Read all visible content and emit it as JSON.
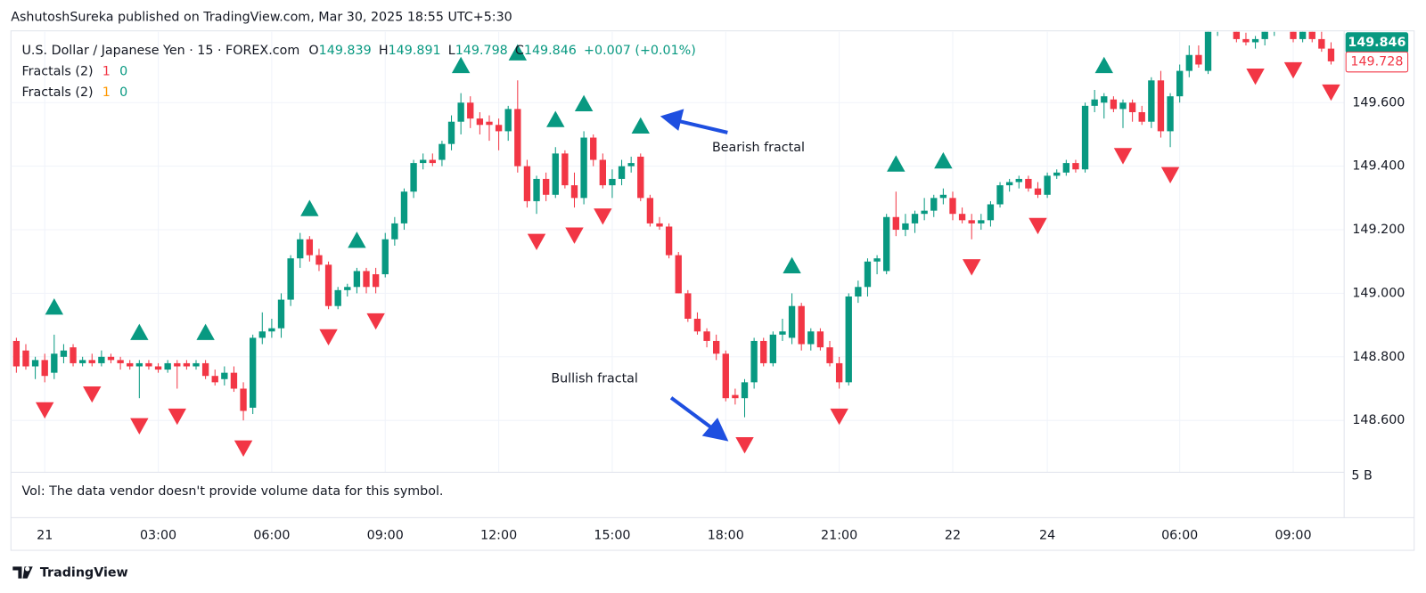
{
  "header": {
    "publisher": "AshutoshSureka published on TradingView.com, Mar 30, 2025 18:55 UTC+5:30",
    "symbol": "U.S. Dollar / Japanese Yen · 15 · FOREX.com",
    "ohlc": [
      {
        "label": "O",
        "value": 149.839
      },
      {
        "label": "H",
        "value": 149.891
      },
      {
        "label": "L",
        "value": 149.798
      },
      {
        "label": "C",
        "value": 149.846
      }
    ],
    "change": "+0.007 (+0.01%)",
    "indicators": [
      {
        "name": "Fractals (2)",
        "values": [
          1,
          0
        ],
        "colors": [
          "#f23645",
          "#089981"
        ]
      },
      {
        "name": "Fractals (2)",
        "values": [
          1,
          0
        ],
        "colors": [
          "#ff9800",
          "#089981"
        ]
      }
    ],
    "volume_note": "Vol: The data vendor doesn't provide volume data for this symbol.",
    "volume_axis_label": "5 B"
  },
  "footer": {
    "brand": "TradingView"
  },
  "chart_data": {
    "type": "candlestick",
    "categories": [
      null,
      null,
      null,
      "21",
      null,
      null,
      null,
      null,
      null,
      null,
      null,
      null,
      null,
      null,
      null,
      "03:00",
      null,
      null,
      null,
      null,
      null,
      null,
      null,
      null,
      null,
      null,
      null,
      "06:00",
      null,
      null,
      null,
      null,
      null,
      null,
      null,
      null,
      null,
      null,
      null,
      "09:00",
      null,
      null,
      null,
      null,
      null,
      null,
      null,
      null,
      null,
      null,
      null,
      "12:00",
      null,
      null,
      null,
      null,
      null,
      null,
      null,
      null,
      null,
      null,
      null,
      "15:00",
      null,
      null,
      null,
      null,
      null,
      null,
      null,
      null,
      null,
      null,
      null,
      "18:00",
      null,
      null,
      null,
      null,
      null,
      null,
      null,
      null,
      null,
      null,
      null,
      "21:00",
      null,
      null,
      null,
      null,
      null,
      null,
      null,
      null,
      null,
      null,
      null,
      "22",
      null,
      null,
      null,
      null,
      null,
      null,
      null,
      null,
      null,
      "24",
      null,
      null,
      null,
      null,
      null,
      null,
      null,
      null,
      null,
      null,
      null,
      null,
      null,
      "06:00",
      null,
      null,
      null,
      null,
      null,
      null,
      null,
      null,
      null,
      null,
      null,
      "09:00",
      null,
      null,
      null,
      null
    ],
    "open": [
      148.85,
      148.82,
      148.77,
      148.79,
      148.75,
      148.8,
      148.83,
      148.78,
      148.79,
      148.78,
      148.8,
      148.79,
      148.78,
      148.77,
      148.78,
      148.77,
      148.76,
      148.78,
      148.78,
      148.77,
      148.78,
      148.74,
      148.73,
      148.75,
      148.7,
      148.64,
      148.86,
      148.88,
      148.89,
      148.98,
      149.11,
      149.17,
      149.12,
      149.09,
      148.96,
      149.01,
      149.02,
      149.07,
      149.06,
      149.06,
      149.17,
      149.22,
      149.32,
      149.41,
      149.42,
      149.42,
      149.47,
      149.54,
      149.6,
      149.55,
      149.54,
      149.53,
      149.51,
      149.58,
      149.4,
      149.29,
      149.36,
      149.31,
      149.44,
      149.34,
      149.3,
      149.49,
      149.42,
      149.34,
      149.36,
      149.4,
      149.43,
      149.3,
      149.22,
      149.21,
      149.12,
      149.0,
      148.92,
      148.88,
      148.85,
      148.81,
      148.68,
      148.67,
      148.72,
      148.85,
      148.78,
      148.87,
      148.86,
      148.96,
      148.84,
      148.88,
      148.83,
      148.78,
      148.72,
      148.99,
      149.02,
      149.1,
      149.07,
      149.24,
      149.2,
      149.22,
      149.25,
      149.26,
      149.3,
      149.3,
      149.25,
      149.23,
      149.22,
      149.23,
      149.28,
      149.34,
      149.35,
      149.36,
      149.33,
      149.31,
      149.37,
      149.38,
      149.41,
      149.39,
      149.59,
      149.6,
      149.61,
      149.58,
      149.6,
      149.57,
      149.54,
      149.67,
      149.51,
      149.62,
      149.7,
      149.75,
      149.7,
      149.83,
      149.88,
      149.84,
      149.8,
      149.79,
      149.8,
      149.83,
      149.86,
      149.84,
      149.8,
      149.83,
      149.8,
      149.77
    ],
    "high": [
      148.86,
      148.84,
      148.8,
      148.81,
      148.87,
      148.84,
      148.84,
      148.8,
      148.81,
      148.82,
      148.81,
      148.8,
      148.79,
      148.79,
      148.79,
      148.78,
      148.79,
      148.79,
      148.79,
      148.79,
      148.79,
      148.76,
      148.77,
      148.77,
      148.72,
      148.87,
      148.94,
      148.92,
      149.0,
      149.12,
      149.19,
      149.18,
      149.14,
      149.1,
      149.02,
      149.03,
      149.08,
      149.08,
      149.08,
      149.19,
      149.24,
      149.33,
      149.42,
      149.44,
      149.44,
      149.48,
      149.56,
      149.63,
      149.62,
      149.57,
      149.56,
      149.55,
      149.59,
      149.67,
      149.42,
      149.37,
      149.38,
      149.46,
      149.45,
      149.38,
      149.51,
      149.5,
      149.44,
      149.39,
      149.42,
      149.43,
      149.44,
      149.31,
      149.24,
      149.22,
      149.13,
      149.01,
      148.94,
      148.89,
      148.87,
      148.82,
      148.7,
      148.73,
      148.86,
      148.86,
      148.88,
      148.92,
      149.0,
      148.97,
      148.89,
      148.89,
      148.85,
      148.8,
      149.0,
      149.04,
      149.11,
      149.12,
      149.25,
      149.32,
      149.25,
      149.26,
      149.3,
      149.31,
      149.33,
      149.32,
      149.27,
      149.25,
      149.25,
      149.29,
      149.35,
      149.36,
      149.37,
      149.37,
      149.35,
      149.38,
      149.39,
      149.42,
      149.42,
      149.6,
      149.64,
      149.63,
      149.62,
      149.61,
      149.61,
      149.59,
      149.68,
      149.7,
      149.63,
      149.72,
      149.78,
      149.78,
      149.84,
      149.9,
      149.9,
      149.85,
      149.82,
      149.81,
      149.84,
      149.88,
      149.88,
      149.85,
      149.84,
      149.85,
      149.83,
      149.79
    ],
    "low": [
      148.75,
      148.76,
      148.73,
      148.72,
      148.73,
      148.78,
      148.77,
      148.77,
      148.77,
      148.77,
      148.78,
      148.76,
      148.76,
      148.67,
      148.76,
      148.75,
      148.75,
      148.7,
      148.76,
      148.76,
      148.73,
      148.71,
      148.71,
      148.69,
      148.6,
      148.62,
      148.84,
      148.86,
      148.86,
      148.96,
      149.08,
      149.1,
      149.07,
      148.95,
      148.95,
      148.99,
      149.0,
      149.0,
      149.0,
      149.05,
      149.15,
      149.2,
      149.3,
      149.39,
      149.4,
      149.4,
      149.45,
      149.5,
      149.52,
      149.5,
      149.48,
      149.45,
      149.48,
      149.38,
      149.27,
      149.25,
      149.29,
      149.3,
      149.33,
      149.27,
      149.28,
      149.4,
      149.33,
      149.3,
      149.34,
      149.38,
      149.29,
      149.21,
      149.2,
      149.11,
      149.0,
      148.91,
      148.87,
      148.83,
      148.79,
      148.66,
      148.65,
      148.61,
      148.7,
      148.77,
      148.77,
      148.85,
      148.84,
      148.82,
      148.82,
      148.82,
      148.77,
      148.7,
      148.71,
      148.97,
      148.99,
      149.06,
      149.06,
      149.18,
      149.18,
      149.19,
      149.23,
      149.24,
      149.28,
      149.23,
      149.22,
      149.17,
      149.2,
      149.21,
      149.27,
      149.32,
      149.33,
      149.32,
      149.3,
      149.3,
      149.36,
      149.37,
      149.38,
      149.38,
      149.57,
      149.55,
      149.57,
      149.52,
      149.54,
      149.53,
      149.52,
      149.49,
      149.46,
      149.6,
      149.68,
      149.71,
      149.69,
      149.81,
      149.84,
      149.79,
      149.78,
      149.77,
      149.78,
      149.81,
      149.83,
      149.79,
      149.79,
      149.79,
      149.76,
      149.72
    ],
    "close": [
      148.77,
      148.77,
      148.79,
      148.74,
      148.81,
      148.82,
      148.78,
      148.79,
      148.78,
      148.8,
      148.79,
      148.78,
      148.77,
      148.78,
      148.77,
      148.76,
      148.78,
      148.77,
      148.77,
      148.78,
      148.74,
      148.72,
      148.75,
      148.7,
      148.63,
      148.86,
      148.88,
      148.89,
      148.98,
      149.11,
      149.17,
      149.12,
      149.09,
      148.96,
      149.01,
      149.02,
      149.07,
      149.02,
      149.02,
      149.17,
      149.22,
      149.32,
      149.41,
      149.42,
      149.41,
      149.47,
      149.54,
      149.6,
      149.55,
      149.53,
      149.53,
      149.51,
      149.58,
      149.4,
      149.29,
      149.36,
      149.31,
      149.44,
      149.34,
      149.3,
      149.49,
      149.42,
      149.34,
      149.36,
      149.4,
      149.41,
      149.3,
      149.22,
      149.21,
      149.12,
      149.0,
      148.92,
      148.88,
      148.85,
      148.81,
      148.67,
      148.67,
      148.72,
      148.85,
      148.78,
      148.87,
      148.88,
      148.96,
      148.84,
      148.88,
      148.83,
      148.78,
      148.72,
      148.99,
      149.02,
      149.1,
      149.11,
      149.24,
      149.2,
      149.22,
      149.25,
      149.26,
      149.3,
      149.31,
      149.25,
      149.23,
      149.22,
      149.23,
      149.28,
      149.34,
      149.35,
      149.36,
      149.33,
      149.31,
      149.37,
      149.38,
      149.41,
      149.39,
      149.59,
      149.61,
      149.62,
      149.58,
      149.6,
      149.57,
      149.54,
      149.67,
      149.51,
      149.62,
      149.7,
      149.75,
      149.72,
      149.83,
      149.88,
      149.86,
      149.8,
      149.79,
      149.8,
      149.83,
      149.86,
      149.84,
      149.8,
      149.83,
      149.8,
      149.77,
      149.73
    ],
    "up_color": "#089981",
    "down_color": "#f23645",
    "fractals": {
      "up": [
        4,
        13,
        20,
        31,
        36,
        47,
        53,
        57,
        60,
        66,
        82,
        93,
        98,
        115
      ],
      "up_color": "#089981",
      "down": [
        3,
        8,
        13,
        17,
        24,
        33,
        38,
        55,
        59,
        62,
        77,
        87,
        101,
        108,
        117,
        122,
        131,
        135,
        139
      ],
      "down_color": "#f23645"
    },
    "ylim": [
      148.437,
      149.823
    ],
    "yticks": [
      {
        "value": 148.6,
        "label": "148.600"
      },
      {
        "value": 148.8,
        "label": "148.800"
      },
      {
        "value": 149,
        "label": "149.000"
      },
      {
        "value": 149.2,
        "label": "149.200"
      },
      {
        "value": 149.4,
        "label": "149.400"
      },
      {
        "value": 149.6,
        "label": "149.600"
      }
    ],
    "price_badges": [
      {
        "value": 149.846,
        "label": "149.846",
        "color": "#089981",
        "style": "filled"
      },
      {
        "value": 149.728,
        "label": "149.728",
        "color": "#f23645",
        "style": "outline"
      }
    ],
    "grid": true,
    "annotations": [
      {
        "text": "Bearish fractal"
      },
      {
        "text": "Bullish fractal"
      }
    ]
  }
}
